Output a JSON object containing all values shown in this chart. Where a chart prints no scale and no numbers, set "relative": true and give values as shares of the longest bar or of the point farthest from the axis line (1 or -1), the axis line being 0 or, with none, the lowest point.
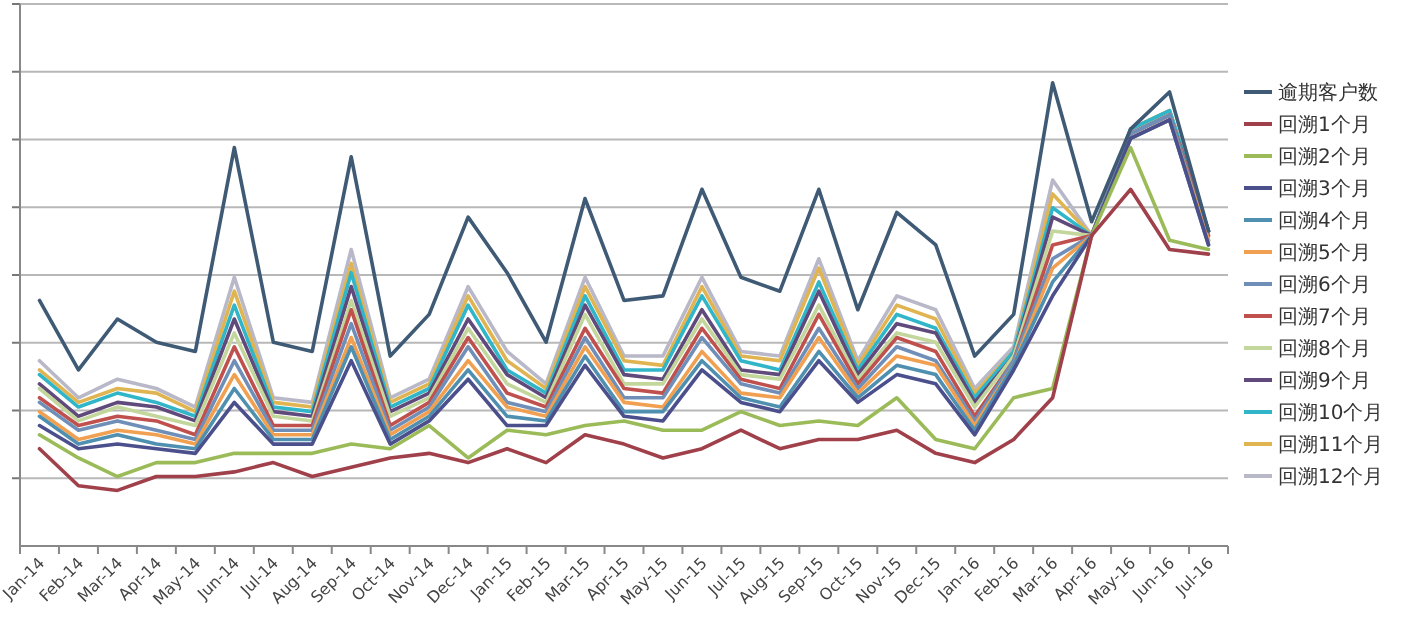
{
  "chart_data": {
    "type": "line",
    "relative": true,
    "grid": "y",
    "legend": "right",
    "marker": "none",
    "line_style": "solid",
    "categories": [
      "Jan-14",
      "Feb-14",
      "Mar-14",
      "Apr-14",
      "May-14",
      "Jun-14",
      "Jul-14",
      "Aug-14",
      "Sep-14",
      "Oct-14",
      "Nov-14",
      "Dec-14",
      "Jan-15",
      "Feb-15",
      "Mar-15",
      "Apr-15",
      "May-15",
      "Jun-15",
      "Jul-15",
      "Aug-15",
      "Sep-15",
      "Oct-15",
      "Nov-15",
      "Dec-15",
      "Jan-16",
      "Feb-16",
      "Mar-16",
      "Apr-16",
      "May-16",
      "Jun-16",
      "Jul-16"
    ],
    "series": [
      {
        "name": "逾期客户数",
        "color": "#3f5a75",
        "values": [
          0.53,
          0.38,
          0.49,
          0.44,
          0.42,
          0.86,
          0.44,
          0.42,
          0.84,
          0.41,
          0.5,
          0.71,
          0.59,
          0.44,
          0.75,
          0.53,
          0.54,
          0.77,
          0.58,
          0.55,
          0.77,
          0.51,
          0.72,
          0.65,
          0.41,
          0.5,
          1,
          0.7,
          0.9,
          0.98,
          0.68
        ]
      },
      {
        "name": "回溯1个月",
        "color": "#a0404a",
        "values": [
          0.21,
          0.13,
          0.12,
          0.15,
          0.15,
          0.16,
          0.18,
          0.15,
          0.17,
          0.19,
          0.2,
          0.18,
          0.21,
          0.18,
          0.24,
          0.22,
          0.19,
          0.21,
          0.25,
          0.21,
          0.23,
          0.23,
          0.25,
          0.2,
          0.18,
          0.23,
          0.32,
          0.67,
          0.77,
          0.64,
          0.63
        ]
      },
      {
        "name": "回溯2个月",
        "color": "#9bbb59",
        "values": [
          0.24,
          0.19,
          0.15,
          0.18,
          0.18,
          0.2,
          0.2,
          0.2,
          0.22,
          0.21,
          0.26,
          0.19,
          0.25,
          0.24,
          0.26,
          0.27,
          0.25,
          0.25,
          0.29,
          0.26,
          0.27,
          0.26,
          0.32,
          0.23,
          0.21,
          0.32,
          0.34,
          0.67,
          0.86,
          0.66,
          0.64
        ]
      },
      {
        "name": "回溯3个月",
        "color": "#4b4f8c",
        "values": [
          0.26,
          0.21,
          0.22,
          0.21,
          0.2,
          0.31,
          0.22,
          0.22,
          0.4,
          0.22,
          0.27,
          0.36,
          0.26,
          0.26,
          0.39,
          0.28,
          0.27,
          0.38,
          0.31,
          0.29,
          0.4,
          0.31,
          0.37,
          0.35,
          0.24,
          0.38,
          0.54,
          0.67,
          0.88,
          0.92,
          0.65
        ]
      },
      {
        "name": "回溯4个月",
        "color": "#4f8fb0",
        "values": [
          0.28,
          0.22,
          0.24,
          0.22,
          0.21,
          0.34,
          0.23,
          0.23,
          0.43,
          0.23,
          0.28,
          0.38,
          0.28,
          0.27,
          0.41,
          0.29,
          0.29,
          0.4,
          0.32,
          0.3,
          0.42,
          0.32,
          0.39,
          0.37,
          0.25,
          0.39,
          0.57,
          0.67,
          0.88,
          0.92,
          0.65
        ]
      },
      {
        "name": "回溯5个月",
        "color": "#f0a050",
        "values": [
          0.29,
          0.23,
          0.25,
          0.24,
          0.22,
          0.37,
          0.24,
          0.24,
          0.45,
          0.24,
          0.29,
          0.4,
          0.3,
          0.28,
          0.43,
          0.31,
          0.3,
          0.42,
          0.33,
          0.32,
          0.45,
          0.33,
          0.41,
          0.39,
          0.26,
          0.39,
          0.6,
          0.67,
          0.88,
          0.92,
          0.66
        ]
      },
      {
        "name": "回溯6个月",
        "color": "#6f8fb8",
        "values": [
          0.31,
          0.25,
          0.27,
          0.25,
          0.23,
          0.4,
          0.25,
          0.25,
          0.48,
          0.25,
          0.3,
          0.43,
          0.31,
          0.29,
          0.45,
          0.32,
          0.32,
          0.45,
          0.35,
          0.33,
          0.47,
          0.34,
          0.43,
          0.4,
          0.27,
          0.4,
          0.62,
          0.67,
          0.89,
          0.93,
          0.66
        ]
      },
      {
        "name": "回溯7个月",
        "color": "#c0504d",
        "values": [
          0.32,
          0.26,
          0.28,
          0.27,
          0.24,
          0.43,
          0.26,
          0.26,
          0.51,
          0.26,
          0.31,
          0.45,
          0.33,
          0.3,
          0.47,
          0.34,
          0.33,
          0.47,
          0.36,
          0.34,
          0.5,
          0.35,
          0.45,
          0.42,
          0.28,
          0.4,
          0.65,
          0.67,
          0.89,
          0.93,
          0.67
        ]
      },
      {
        "name": "回溯8个月",
        "color": "#c3d69b",
        "values": [
          0.34,
          0.27,
          0.3,
          0.28,
          0.26,
          0.46,
          0.28,
          0.27,
          0.53,
          0.28,
          0.32,
          0.47,
          0.35,
          0.31,
          0.5,
          0.35,
          0.35,
          0.49,
          0.37,
          0.36,
          0.52,
          0.36,
          0.46,
          0.44,
          0.3,
          0.41,
          0.68,
          0.67,
          0.89,
          0.93,
          0.67
        ]
      },
      {
        "name": "回溯9个月",
        "color": "#604a7b",
        "values": [
          0.35,
          0.28,
          0.31,
          0.3,
          0.27,
          0.49,
          0.29,
          0.28,
          0.56,
          0.29,
          0.33,
          0.49,
          0.37,
          0.32,
          0.52,
          0.37,
          0.36,
          0.51,
          0.38,
          0.37,
          0.55,
          0.37,
          0.48,
          0.46,
          0.31,
          0.41,
          0.71,
          0.67,
          0.89,
          0.93,
          0.68
        ]
      },
      {
        "name": "回溯10个月",
        "color": "#31b6c9",
        "values": [
          0.37,
          0.3,
          0.33,
          0.31,
          0.28,
          0.52,
          0.3,
          0.29,
          0.59,
          0.3,
          0.34,
          0.52,
          0.38,
          0.33,
          0.54,
          0.38,
          0.38,
          0.54,
          0.4,
          0.38,
          0.57,
          0.38,
          0.5,
          0.47,
          0.32,
          0.42,
          0.73,
          0.67,
          0.9,
          0.94,
          0.68
        ]
      },
      {
        "name": "回溯11个月",
        "color": "#e0b450",
        "values": [
          0.38,
          0.31,
          0.34,
          0.33,
          0.29,
          0.55,
          0.31,
          0.3,
          0.61,
          0.31,
          0.35,
          0.54,
          0.4,
          0.34,
          0.56,
          0.4,
          0.39,
          0.56,
          0.41,
          0.4,
          0.6,
          0.39,
          0.52,
          0.49,
          0.33,
          0.42,
          0.76,
          0.67,
          0.9,
          0.94,
          0.68
        ]
      },
      {
        "name": "回溯12个月",
        "color": "#b8b8c8",
        "values": [
          0.4,
          0.32,
          0.36,
          0.34,
          0.3,
          0.58,
          0.32,
          0.31,
          0.64,
          0.32,
          0.36,
          0.56,
          0.42,
          0.35,
          0.58,
          0.41,
          0.41,
          0.58,
          0.42,
          0.41,
          0.62,
          0.4,
          0.54,
          0.51,
          0.34,
          0.43,
          0.79,
          0.67,
          0.9,
          0.94,
          0.68
        ]
      }
    ]
  }
}
